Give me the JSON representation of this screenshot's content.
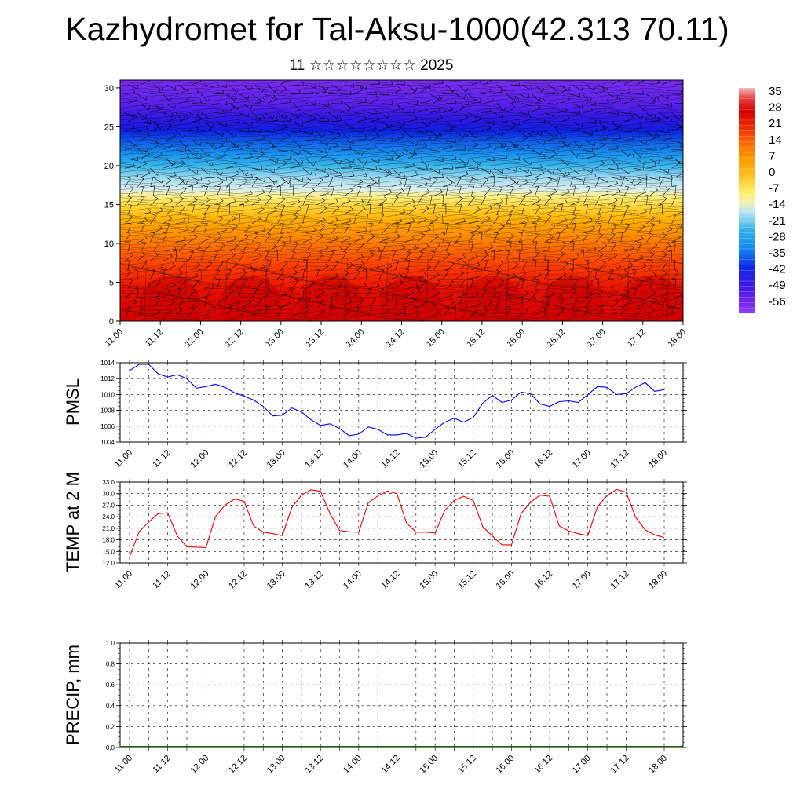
{
  "title": "Kazhydromet for Tal-Aksu-1000(42.313 70.11)",
  "subtitle": "11 ☆☆☆☆☆☆☆☆ 2025",
  "chart_data": [
    {
      "type": "heatmap",
      "description_key": "cross_section",
      "xlabels": [
        "11.00",
        "11.12",
        "12.00",
        "12.12",
        "13.00",
        "13.12",
        "14.00",
        "14.12",
        "15.00",
        "15.12",
        "16.00",
        "16.12",
        "17.00",
        "17.12",
        "18.00"
      ],
      "yticks": [
        0,
        5,
        10,
        15,
        20,
        25,
        30
      ],
      "ylim": [
        0,
        31
      ],
      "colorbar": {
        "labels": [
          "35",
          "28",
          "21",
          "14",
          "7",
          "0",
          "-7",
          "-14",
          "-21",
          "-28",
          "-35",
          "-42",
          "-49",
          "-56"
        ],
        "stops": [
          {
            "v": 38,
            "c": "#f2b8b8"
          },
          {
            "v": 34,
            "c": "#e84a4a"
          },
          {
            "v": 28,
            "c": "#d40000"
          },
          {
            "v": 21,
            "c": "#ec2a00"
          },
          {
            "v": 14,
            "c": "#ff6a00"
          },
          {
            "v": 7,
            "c": "#ff9a00"
          },
          {
            "v": 0,
            "c": "#ffc020"
          },
          {
            "v": -7,
            "c": "#ffee60"
          },
          {
            "v": -12,
            "c": "#f0f0b8"
          },
          {
            "v": -16,
            "c": "#b8e4f2"
          },
          {
            "v": -24,
            "c": "#30b0ea"
          },
          {
            "v": -32,
            "c": "#1488f0"
          },
          {
            "v": -40,
            "c": "#1028e8"
          },
          {
            "v": -48,
            "c": "#3a1ae6"
          },
          {
            "v": -56,
            "c": "#7a28f0"
          },
          {
            "v": -60,
            "c": "#8c3cf5"
          }
        ]
      }
    },
    {
      "type": "line",
      "ylabel": "PMSL",
      "xlabels": [
        "11.00",
        "11.12",
        "12.00",
        "12.12",
        "13.00",
        "13.12",
        "14.00",
        "14.12",
        "15.00",
        "15.12",
        "16.00",
        "16.12",
        "17.00",
        "17.12",
        "18.00"
      ],
      "yticks": [
        "1004",
        "1006",
        "1008",
        "1010",
        "1012",
        "1014"
      ],
      "ylim": [
        1004,
        1014
      ],
      "color": "#0000ff",
      "values": [
        1013.0,
        1013.8,
        1013.8,
        1012.6,
        1012.2,
        1012.5,
        1012.0,
        1010.8,
        1011.0,
        1011.3,
        1010.9,
        1010.2,
        1009.8,
        1009.3,
        1008.5,
        1007.3,
        1007.4,
        1008.3,
        1007.8,
        1006.8,
        1006.1,
        1006.3,
        1005.7,
        1004.8,
        1005.0,
        1005.9,
        1005.6,
        1004.9,
        1004.9,
        1005.1,
        1004.5,
        1004.6,
        1005.6,
        1006.5,
        1007.0,
        1006.5,
        1007.1,
        1008.9,
        1009.9,
        1009.0,
        1009.3,
        1010.3,
        1010.1,
        1008.8,
        1008.5,
        1009.1,
        1009.2,
        1009.0,
        1010.0,
        1011.0,
        1010.9,
        1010.0,
        1010.1,
        1010.9,
        1011.5,
        1010.4,
        1010.6
      ]
    },
    {
      "type": "line",
      "ylabel": "TEMP at 2 M",
      "xlabels": [
        "11.00",
        "11.12",
        "12.00",
        "12.12",
        "13.00",
        "13.12",
        "14.00",
        "14.12",
        "15.00",
        "15.12",
        "16.00",
        "16.12",
        "17.00",
        "17.12",
        "18.00"
      ],
      "yticks": [
        "12.0",
        "15.0",
        "18.0",
        "21.0",
        "24.0",
        "27.0",
        "30.0",
        "33.0"
      ],
      "ylim": [
        12,
        33
      ],
      "color": "#ee0000",
      "values": [
        13.6,
        20.1,
        22.6,
        24.8,
        25.0,
        19.0,
        16.2,
        16.1,
        16.0,
        24.0,
        27.0,
        28.6,
        28.0,
        21.6,
        20.0,
        19.6,
        19.1,
        26.4,
        29.6,
        31.0,
        30.6,
        24.8,
        20.4,
        20.1,
        20.0,
        27.6,
        29.4,
        30.7,
        30.0,
        22.4,
        20.0,
        20.0,
        19.8,
        25.6,
        28.2,
        29.3,
        28.2,
        21.4,
        19.0,
        16.7,
        16.7,
        24.8,
        27.8,
        29.6,
        29.3,
        21.6,
        20.3,
        19.6,
        19.1,
        26.6,
        29.5,
        31.1,
        30.4,
        23.9,
        20.6,
        19.3,
        18.6
      ]
    },
    {
      "type": "bar",
      "ylabel": "PRECIP, mm",
      "xlabels": [
        "11.00",
        "11.12",
        "12.00",
        "12.12",
        "13.00",
        "13.12",
        "14.00",
        "14.12",
        "15.00",
        "15.12",
        "16.00",
        "16.12",
        "17.00",
        "17.12",
        "18.00"
      ],
      "yticks": [
        "0.0",
        "0.2",
        "0.4",
        "0.6",
        "0.8",
        "1.0"
      ],
      "ylim": [
        0,
        1
      ],
      "color": "#006600",
      "values": [
        0,
        0,
        0,
        0,
        0,
        0,
        0,
        0,
        0,
        0,
        0,
        0,
        0,
        0,
        0,
        0,
        0,
        0,
        0,
        0,
        0,
        0,
        0,
        0,
        0,
        0,
        0,
        0,
        0,
        0,
        0,
        0,
        0,
        0,
        0,
        0,
        0,
        0,
        0,
        0,
        0,
        0,
        0,
        0,
        0,
        0,
        0,
        0,
        0,
        0,
        0,
        0,
        0,
        0,
        0,
        0,
        0
      ]
    }
  ]
}
